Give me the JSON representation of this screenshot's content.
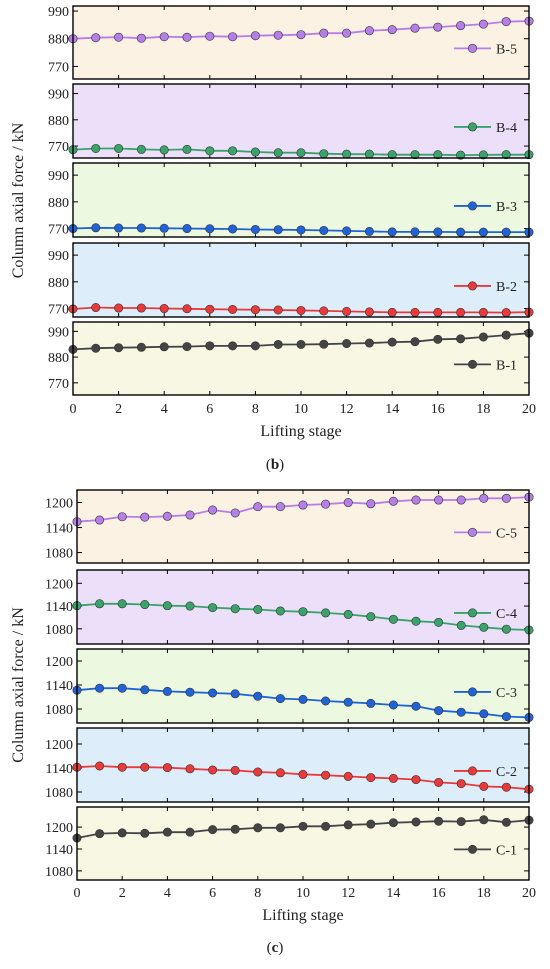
{
  "figure": {
    "ylabel": "Column axial force / kN",
    "xlabel": "Lifting stage"
  },
  "chart_data": [
    {
      "type": "line",
      "caption": "(b)",
      "caption_bold": "b",
      "xlabel": "Lifting stage",
      "ylabel": "Column axial force / kN",
      "xlim": [
        0,
        20
      ],
      "xticks": [
        0,
        2,
        4,
        6,
        8,
        10,
        12,
        14,
        16,
        18,
        20
      ],
      "x": [
        0,
        1,
        2,
        3,
        4,
        5,
        6,
        7,
        8,
        9,
        10,
        11,
        12,
        13,
        14,
        15,
        16,
        17,
        18,
        19,
        20
      ],
      "panels": [
        {
          "name": "B-5",
          "bg": "#fcf2e3",
          "color": "#b57ee8",
          "ylim": [
            720,
            1010
          ],
          "yticks": [
            770,
            880,
            990
          ],
          "values": [
            880,
            884,
            886,
            882,
            888,
            886,
            890,
            888,
            892,
            894,
            896,
            902,
            902,
            912,
            916,
            922,
            926,
            932,
            938,
            948,
            950
          ]
        },
        {
          "name": "B-4",
          "bg": "#ecdffa",
          "color": "#3aa36a",
          "ylim": [
            720,
            1030
          ],
          "yticks": [
            770,
            880,
            990
          ],
          "values": [
            755,
            760,
            760,
            756,
            754,
            756,
            750,
            750,
            745,
            742,
            742,
            738,
            736,
            736,
            734,
            734,
            734,
            732,
            733,
            734,
            734
          ]
        },
        {
          "name": "B-3",
          "bg": "#edf8e0",
          "color": "#1f63d6",
          "ylim": [
            735,
            1040
          ],
          "yticks": [
            770,
            880,
            990
          ],
          "values": [
            770,
            773,
            772,
            772,
            771,
            770,
            769,
            768,
            766,
            765,
            764,
            762,
            760,
            758,
            756,
            756,
            756,
            755,
            755,
            755,
            755
          ]
        },
        {
          "name": "B-2",
          "bg": "#ddeefa",
          "color": "#e83a3a",
          "ylim": [
            735,
            1040
          ],
          "yticks": [
            770,
            880,
            990
          ],
          "values": [
            768,
            774,
            772,
            772,
            770,
            769,
            767,
            766,
            765,
            764,
            762,
            760,
            758,
            756,
            754,
            754,
            754,
            754,
            754,
            753,
            755
          ]
        },
        {
          "name": "B-1",
          "bg": "#f7f7e3",
          "color": "#444444",
          "ylim": [
            718,
            1030
          ],
          "yticks": [
            770,
            880,
            990
          ],
          "values": [
            913,
            918,
            920,
            922,
            924,
            925,
            928,
            928,
            928,
            934,
            934,
            935,
            938,
            940,
            944,
            946,
            956,
            958,
            966,
            974,
            982
          ]
        }
      ]
    },
    {
      "type": "line",
      "caption": "(c)",
      "caption_bold": "c",
      "xlabel": "Lifting stage",
      "ylabel": "Column axial force / kN",
      "xlim": [
        0,
        20
      ],
      "xticks": [
        0,
        2,
        4,
        6,
        8,
        10,
        12,
        14,
        16,
        18,
        20
      ],
      "x": [
        0,
        1,
        2,
        3,
        4,
        5,
        6,
        7,
        8,
        9,
        10,
        11,
        12,
        13,
        14,
        15,
        16,
        17,
        18,
        19,
        20
      ],
      "panels": [
        {
          "name": "C-5",
          "bg": "#fcf2e3",
          "color": "#b57ee8",
          "ylim": [
            1055,
            1230
          ],
          "yticks": [
            1080,
            1140,
            1200
          ],
          "values": [
            1154,
            1158,
            1166,
            1165,
            1167,
            1170,
            1182,
            1175,
            1190,
            1190,
            1194,
            1196,
            1200,
            1197,
            1203,
            1206,
            1206,
            1206,
            1210,
            1210,
            1213
          ]
        },
        {
          "name": "C-4",
          "bg": "#ecdffa",
          "color": "#3aa36a",
          "ylim": [
            1040,
            1235
          ],
          "yticks": [
            1080,
            1140,
            1200
          ],
          "values": [
            1141,
            1146,
            1146,
            1144,
            1141,
            1140,
            1136,
            1133,
            1131,
            1127,
            1125,
            1122,
            1118,
            1112,
            1105,
            1100,
            1097,
            1089,
            1084,
            1079,
            1077
          ]
        },
        {
          "name": "C-3",
          "bg": "#edf8e0",
          "color": "#1f63d6",
          "ylim": [
            1045,
            1230
          ],
          "yticks": [
            1080,
            1140,
            1200
          ],
          "values": [
            1127,
            1132,
            1132,
            1128,
            1124,
            1122,
            1120,
            1118,
            1112,
            1106,
            1104,
            1100,
            1097,
            1094,
            1090,
            1087,
            1076,
            1072,
            1068,
            1061,
            1059
          ]
        },
        {
          "name": "C-2",
          "bg": "#ddeefa",
          "color": "#e83a3a",
          "ylim": [
            1055,
            1240
          ],
          "yticks": [
            1080,
            1140,
            1200
          ],
          "values": [
            1142,
            1145,
            1142,
            1142,
            1141,
            1138,
            1135,
            1134,
            1130,
            1128,
            1124,
            1122,
            1119,
            1116,
            1114,
            1111,
            1104,
            1101,
            1094,
            1092,
            1087
          ]
        },
        {
          "name": "C-1",
          "bg": "#f7f7e3",
          "color": "#444444",
          "ylim": [
            1055,
            1255
          ],
          "yticks": [
            1080,
            1140,
            1200
          ],
          "values": [
            1170,
            1182,
            1184,
            1183,
            1186,
            1186,
            1193,
            1194,
            1198,
            1198,
            1202,
            1202,
            1206,
            1208,
            1212,
            1214,
            1216,
            1215,
            1220,
            1213,
            1219
          ]
        }
      ]
    }
  ]
}
